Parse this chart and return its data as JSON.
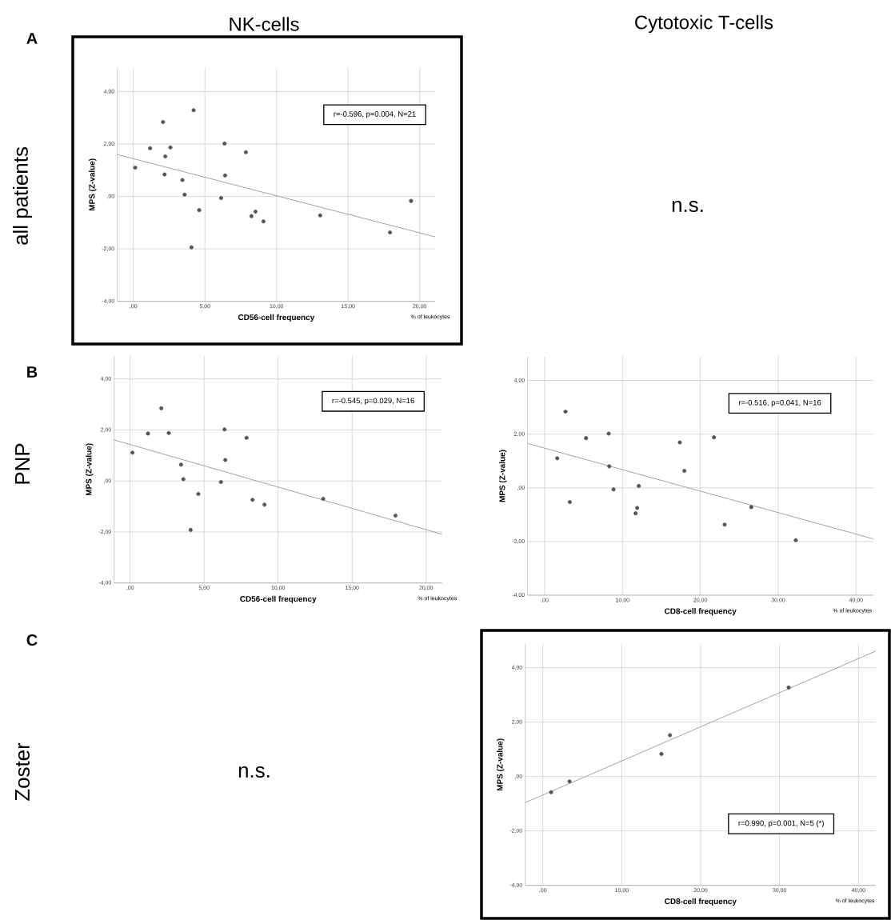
{
  "chart_data": [
    {
      "type": "other",
      "annotations": [
        "NK-cells",
        "Cytotoxic T-cells",
        "A",
        "all patients",
        "B",
        "PNP",
        "C",
        "Zoster"
      ]
    },
    {
      "type": "scatter",
      "xlabel": "CD56-cell frequency",
      "ylabel": "MPS (Z-value)",
      "annotations": [
        "r=-0.596, p=0.004, N=21",
        "% of leukocytes"
      ],
      "xlim": [
        -1.12,
        21.08
      ],
      "ylim": [
        -4,
        4.9
      ],
      "xticks": [
        {
          "value": 0,
          "label": ",00"
        },
        {
          "value": 5,
          "label": "5,00"
        },
        {
          "value": 10,
          "label": "10,00"
        },
        {
          "value": 15,
          "label": "15,00"
        },
        {
          "value": 20,
          "label": "20,00"
        }
      ],
      "yticks": [
        {
          "value": -4,
          "label": "-4,00"
        },
        {
          "value": -2,
          "label": "-2,00"
        },
        {
          "value": 0,
          "label": ",00"
        },
        {
          "value": 2,
          "label": "2,00"
        },
        {
          "value": 4,
          "label": "4,00"
        }
      ],
      "grid": true,
      "series": [
        {
          "type": "scatter",
          "color": "#555555",
          "marker": "circle",
          "x": [
            0.13,
            1.17,
            2.07,
            2.23,
            2.18,
            2.59,
            3.43,
            3.58,
            4.21,
            4.06,
            4.6,
            6.13,
            6.37,
            6.41,
            7.86,
            8.25,
            8.53,
            9.09,
            13.05,
            17.93,
            19.4
          ],
          "values": [
            1.1,
            1.84,
            2.84,
            1.53,
            0.84,
            1.87,
            0.63,
            0.07,
            3.29,
            -1.94,
            -0.52,
            -0.06,
            2.02,
            0.8,
            1.69,
            -0.75,
            -0.58,
            -0.95,
            -0.72,
            -1.37,
            -0.17
          ]
        },
        {
          "type": "line",
          "color": "#999999",
          "marker": "none",
          "x": [
            -1.12,
            21.08
          ],
          "values": [
            1.6,
            -1.54
          ]
        }
      ]
    },
    {
      "type": "other",
      "annotations": [
        "n.s."
      ]
    },
    {
      "type": "scatter",
      "xlabel": "CD56-cell frequency",
      "ylabel": "MPS (Z-value)",
      "annotations": [
        "r=-0.545, p=0.029, N=16",
        "% of leukocytes"
      ],
      "xlim": [
        -1.08,
        21.08
      ],
      "ylim": [
        -4,
        4.9
      ],
      "xticks": [
        {
          "value": 0,
          "label": ",00"
        },
        {
          "value": 5,
          "label": "5,00"
        },
        {
          "value": 10,
          "label": "10,00"
        },
        {
          "value": 15,
          "label": "15,00"
        },
        {
          "value": 20,
          "label": "20,00"
        }
      ],
      "yticks": [
        {
          "value": -4,
          "label": "-4,00"
        },
        {
          "value": -2,
          "label": "-2,00"
        },
        {
          "value": 0,
          "label": ",00"
        },
        {
          "value": 2,
          "label": "2,00"
        },
        {
          "value": 4,
          "label": "4,00"
        }
      ],
      "grid": true,
      "series": [
        {
          "type": "scatter",
          "color": "#555555",
          "marker": "circle",
          "x": [
            0.16,
            1.21,
            2.11,
            2.61,
            3.44,
            3.6,
            4.09,
            4.61,
            6.14,
            6.38,
            6.43,
            7.87,
            8.27,
            9.08,
            13.05,
            17.93
          ],
          "values": [
            1.11,
            1.86,
            2.85,
            1.88,
            0.64,
            0.07,
            -1.92,
            -0.51,
            -0.04,
            2.02,
            0.82,
            1.69,
            -0.74,
            -0.93,
            -0.7,
            -1.36
          ]
        },
        {
          "type": "line",
          "color": "#999999",
          "marker": "none",
          "x": [
            -1.08,
            21.08
          ],
          "values": [
            1.61,
            -2.09
          ]
        }
      ]
    },
    {
      "type": "scatter",
      "xlabel": "CD8-cell frequency",
      "ylabel": "MPS (Z-value)",
      "annotations": [
        "r=-0.516, p=0.041, N=16",
        "% of leukocytes"
      ],
      "xlim": [
        -2.19,
        42.2
      ],
      "ylim": [
        -4,
        4.88
      ],
      "xticks": [
        {
          "value": 0,
          "label": ",00"
        },
        {
          "value": 10,
          "label": "10,00"
        },
        {
          "value": 20,
          "label": "20,00"
        },
        {
          "value": 30,
          "label": "30,00"
        },
        {
          "value": 40,
          "label": "40,00"
        }
      ],
      "yticks": [
        {
          "value": -4,
          "label": "-4,00"
        },
        {
          "value": -2,
          "label": "-2,00"
        },
        {
          "value": 0,
          "label": ",00"
        },
        {
          "value": 2,
          "label": "2,00"
        },
        {
          "value": 4,
          "label": "4,00"
        }
      ],
      "grid": true,
      "series": [
        {
          "type": "scatter",
          "color": "#555555",
          "marker": "circle",
          "x": [
            1.61,
            2.67,
            3.22,
            5.31,
            8.22,
            8.29,
            8.84,
            11.68,
            11.88,
            12.09,
            17.36,
            17.95,
            21.75,
            23.12,
            26.54,
            32.26
          ],
          "values": [
            1.1,
            2.84,
            -0.53,
            1.85,
            2.02,
            0.8,
            -0.06,
            -0.95,
            -0.75,
            0.07,
            1.69,
            0.63,
            1.88,
            -1.37,
            -0.72,
            -1.95
          ]
        },
        {
          "type": "line",
          "color": "#999999",
          "marker": "none",
          "x": [
            -2.19,
            42.2
          ],
          "values": [
            1.65,
            -1.9
          ]
        }
      ]
    },
    {
      "type": "other",
      "annotations": [
        "n.s."
      ]
    },
    {
      "type": "scatter",
      "xlabel": "CD8-cell frequency",
      "ylabel": "MPS (Z-value)",
      "annotations": [
        "r=0.990, p=0.001, N=5 (*)",
        "% of leukocytes"
      ],
      "xlim": [
        -2.23,
        42.2
      ],
      "ylim": [
        -4,
        4.87
      ],
      "xticks": [
        {
          "value": 0,
          "label": ",00"
        },
        {
          "value": 10,
          "label": "10,00"
        },
        {
          "value": 20,
          "label": "20,00"
        },
        {
          "value": 30,
          "label": "30,00"
        },
        {
          "value": 40,
          "label": "40,00"
        }
      ],
      "yticks": [
        {
          "value": -4,
          "label": "-4,00"
        },
        {
          "value": -2,
          "label": "-2,00"
        },
        {
          "value": 0,
          "label": ",00"
        },
        {
          "value": 2,
          "label": "2,00"
        },
        {
          "value": 4,
          "label": "4,00"
        }
      ],
      "grid": true,
      "series": [
        {
          "type": "scatter",
          "color": "#555555",
          "marker": "circle",
          "x": [
            1.05,
            3.38,
            15.03,
            16.11,
            31.15
          ],
          "values": [
            -0.58,
            -0.18,
            0.83,
            1.52,
            3.27
          ]
        },
        {
          "type": "line",
          "color": "#999999",
          "marker": "none",
          "x": [
            -2.23,
            42.2
          ],
          "values": [
            -0.96,
            4.61
          ]
        }
      ]
    }
  ]
}
